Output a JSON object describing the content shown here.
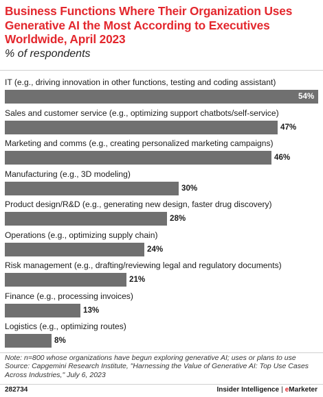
{
  "header": {
    "title": "Business Functions Where Their Organization Uses Generative AI the Most According to Executives Worldwide, April 2023",
    "subtitle": "% of respondents"
  },
  "colors": {
    "accent": "#e3272d",
    "bar": "#707070"
  },
  "chart_data": {
    "type": "bar",
    "orientation": "horizontal",
    "title": "Business Functions Where Their Organization Uses Generative AI the Most According to Executives Worldwide, April 2023",
    "subtitle": "% of respondents",
    "categories": [
      "IT (e.g., driving innovation in other functions, testing and coding assistant)",
      "Sales and customer service (e.g., optimizing support chatbots/self-service)",
      "Marketing and comms (e.g., creating personalized marketing campaigns)",
      "Manufacturing (e.g., 3D modeling)",
      "Product design/R&D (e.g., generating new design, faster drug discovery)",
      "Operations (e.g., optimizing supply chain)",
      "Risk management (e.g., drafting/reviewing legal and regulatory documents)",
      "Finance (e.g., processing invoices)",
      "Logistics (e.g., optimizing routes)"
    ],
    "values": [
      54,
      47,
      46,
      30,
      28,
      24,
      21,
      13,
      8
    ],
    "value_labels": [
      "54%",
      "47%",
      "46%",
      "30%",
      "28%",
      "24%",
      "21%",
      "13%",
      "8%"
    ],
    "xlim": [
      0,
      54
    ],
    "grid": false,
    "legend": "none"
  },
  "footer": {
    "note": "Note: n=800 whose organizations have begun exploring generative AI; uses or plans to use",
    "source": "Source: Capgemini Research Institute, \"Harnessing the Value of Generative AI: Top Use Cases Across Industries,\" July 6, 2023",
    "chart_id": "282734",
    "brand_primary": "Insider Intelligence",
    "brand_separator": "|",
    "brand_secondary_prefix": "e",
    "brand_secondary_rest": "Marketer"
  }
}
